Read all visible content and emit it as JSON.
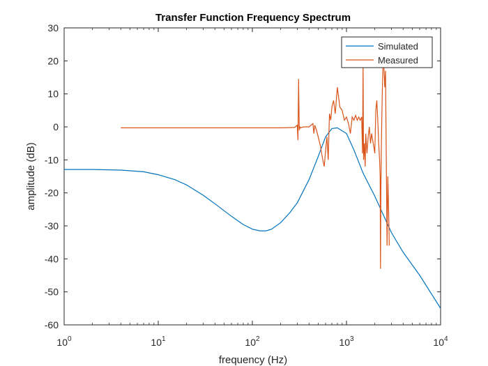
{
  "chart_data": {
    "type": "line",
    "title": "Transfer Function Frequency Spectrum",
    "xlabel": "frequency (Hz)",
    "ylabel": "amplitude (dB)",
    "x_scale": "log",
    "xlim": [
      1,
      10000
    ],
    "ylim": [
      -60,
      30
    ],
    "x_ticks": [
      {
        "value": 1,
        "base": "10",
        "exp": "0"
      },
      {
        "value": 10,
        "base": "10",
        "exp": "1"
      },
      {
        "value": 100,
        "base": "10",
        "exp": "2"
      },
      {
        "value": 1000,
        "base": "10",
        "exp": "3"
      },
      {
        "value": 10000,
        "base": "10",
        "exp": "4"
      }
    ],
    "y_ticks": [
      "30",
      "20",
      "10",
      "0",
      "-10",
      "-20",
      "-30",
      "-40",
      "-50",
      "-60"
    ],
    "y_tick_values": [
      30,
      20,
      10,
      0,
      -10,
      -20,
      -30,
      -40,
      -50,
      -60
    ],
    "grid": false,
    "legend_position": "top-right",
    "series": [
      {
        "name": "Simulated",
        "color": "#0072BD",
        "x": [
          1,
          2,
          4,
          7,
          10,
          15,
          20,
          30,
          40,
          60,
          80,
          100,
          120,
          140,
          160,
          200,
          250,
          300,
          400,
          500,
          600,
          700,
          800,
          1000,
          1200,
          1500,
          2000,
          3000,
          4000,
          6000,
          10000
        ],
        "y": [
          -12.9,
          -12.9,
          -13.1,
          -13.6,
          -14.5,
          -16.0,
          -17.6,
          -20.7,
          -23.3,
          -27.1,
          -29.6,
          -31.0,
          -31.5,
          -31.5,
          -31.0,
          -29.0,
          -26.0,
          -23.0,
          -16.0,
          -9.0,
          -3.0,
          -0.5,
          -0.3,
          -2.0,
          -7.0,
          -14.0,
          -21.0,
          -32.0,
          -38.0,
          -45.0,
          -55.0
        ]
      },
      {
        "name": "Measured",
        "color": "#D95319",
        "x": [
          4,
          10,
          50,
          100,
          200,
          280,
          300,
          305,
          310,
          315,
          320,
          325,
          350,
          400,
          440,
          450,
          460,
          480,
          500,
          530,
          560,
          580,
          600,
          620,
          640,
          660,
          680,
          700,
          730,
          760,
          800,
          850,
          900,
          950,
          1000,
          1050,
          1100,
          1150,
          1200,
          1250,
          1300,
          1350,
          1400,
          1450,
          1480,
          1500,
          1520,
          1550,
          1580,
          1600,
          1650,
          1700,
          1750,
          1800,
          1850,
          1900,
          1950,
          2000,
          2050,
          2100,
          2150,
          2200,
          2250,
          2280,
          2300,
          2320,
          2350,
          2400,
          2450,
          2500,
          2550,
          2600,
          2650,
          2700,
          2750,
          2800,
          2850
        ],
        "y": [
          -0.3,
          -0.3,
          -0.3,
          -0.3,
          -0.3,
          -0.2,
          0.5,
          -4.0,
          14.5,
          -1.0,
          0.0,
          -0.3,
          0.0,
          0.0,
          1.0,
          -2.0,
          0.5,
          -1.0,
          -3.0,
          -6.0,
          -10.0,
          -12.0,
          -7.0,
          -3.0,
          -10.0,
          4.0,
          2.0,
          6.0,
          8.0,
          4.0,
          12.0,
          6.0,
          5.0,
          2.0,
          3.0,
          1.0,
          -2.0,
          3.0,
          2.0,
          3.5,
          2.0,
          3.0,
          2.0,
          3.0,
          -8.0,
          19.0,
          -10.0,
          -5.0,
          -12.0,
          -2.0,
          -8.0,
          -3.0,
          0.0,
          -5.0,
          -2.0,
          -4.0,
          -6.0,
          -8.0,
          5.0,
          8.0,
          2.0,
          -5.0,
          -10.0,
          -15.0,
          -43.0,
          -20.0,
          -5.0,
          10.0,
          20.0,
          18.0,
          12.0,
          17.0,
          -10.0,
          -36.0,
          -15.0,
          -25.0,
          -36.0
        ]
      }
    ]
  }
}
